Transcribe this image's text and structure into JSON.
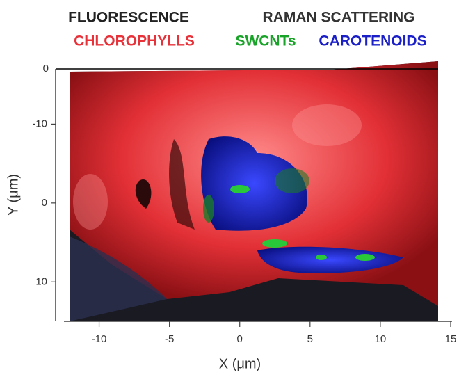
{
  "chart_data": {
    "type": "image",
    "group_titles": [
      "FLUORESCENCE",
      "RAMAN SCATTERING"
    ],
    "series": [
      {
        "name": "CHLOROPHYLLS",
        "color": "#e8323a"
      },
      {
        "name": "SWCNTs",
        "color": "#1aa329"
      },
      {
        "name": "CAROTENOIDS",
        "color": "#1a1fc8"
      }
    ],
    "x_label": "X (μm)",
    "y_label": "Y (μm)",
    "xlim": [
      -12.5,
      15
    ],
    "xticks": [
      -10,
      -5,
      0,
      5,
      10,
      15
    ],
    "ylim": [
      -17,
      15
    ],
    "yticks": [
      -10,
      0,
      10
    ],
    "y_inverted": true,
    "annotations": [
      "0"
    ]
  }
}
